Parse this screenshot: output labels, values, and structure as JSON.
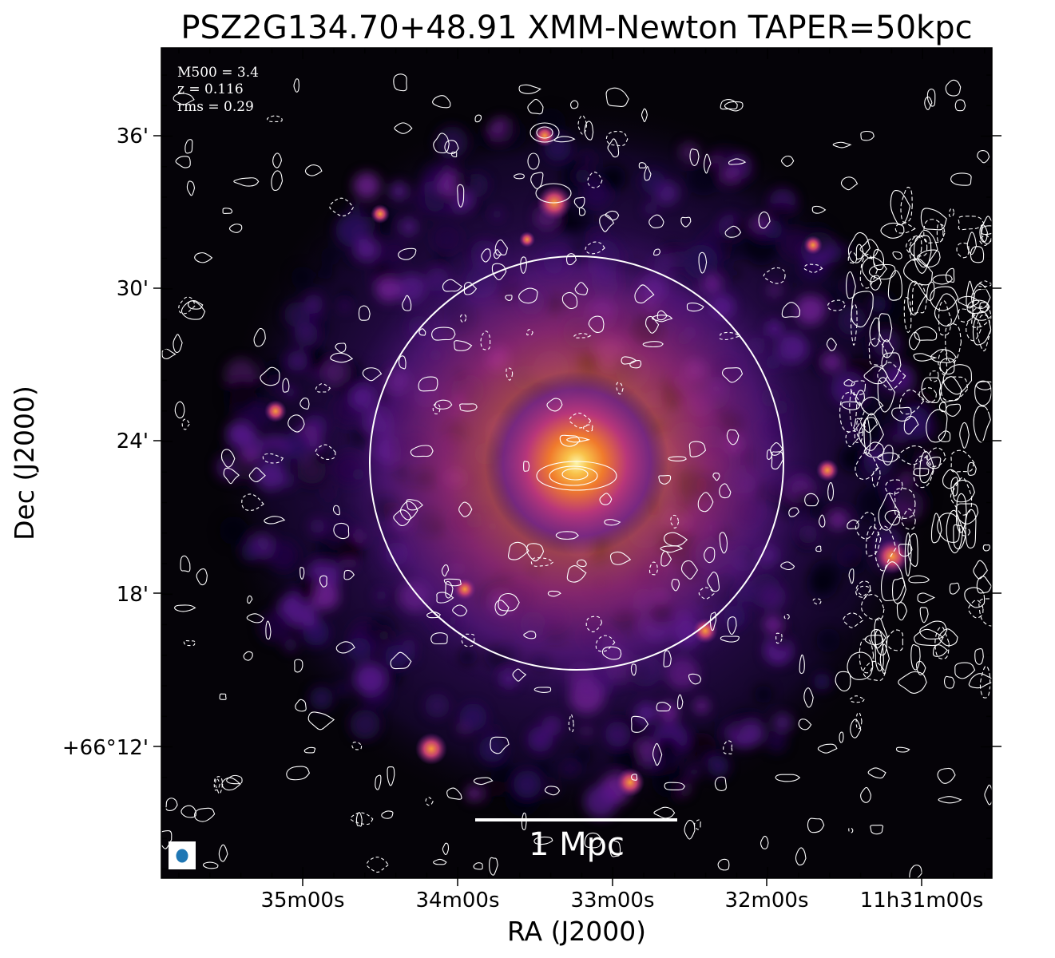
{
  "title": "PSZ2G134.70+48.91 XMM-Newton TAPER=50kpc",
  "x_axis_label": "RA (J2000)",
  "y_axis_label": "Dec (J2000)",
  "x_ticks": [
    "35m00s",
    "34m00s",
    "33m00s",
    "32m00s",
    "11h31m00s"
  ],
  "y_ticks": [
    "36'",
    "30'",
    "24'",
    "18'",
    "+66°12'"
  ],
  "annotation": {
    "mass": "M500 = 3.4",
    "redshift": "z = 0.116",
    "rms": "rms = 0.29"
  },
  "scale_bar": {
    "label": "1 Mpc"
  },
  "colors": {
    "background": "#050308",
    "colormap": [
      "#000004",
      "#2a0a5e",
      "#6b1f8e",
      "#b8367a",
      "#f07a2c",
      "#fcf5a8"
    ],
    "contours": "#ffffff",
    "beam": "#1f77b4"
  }
}
